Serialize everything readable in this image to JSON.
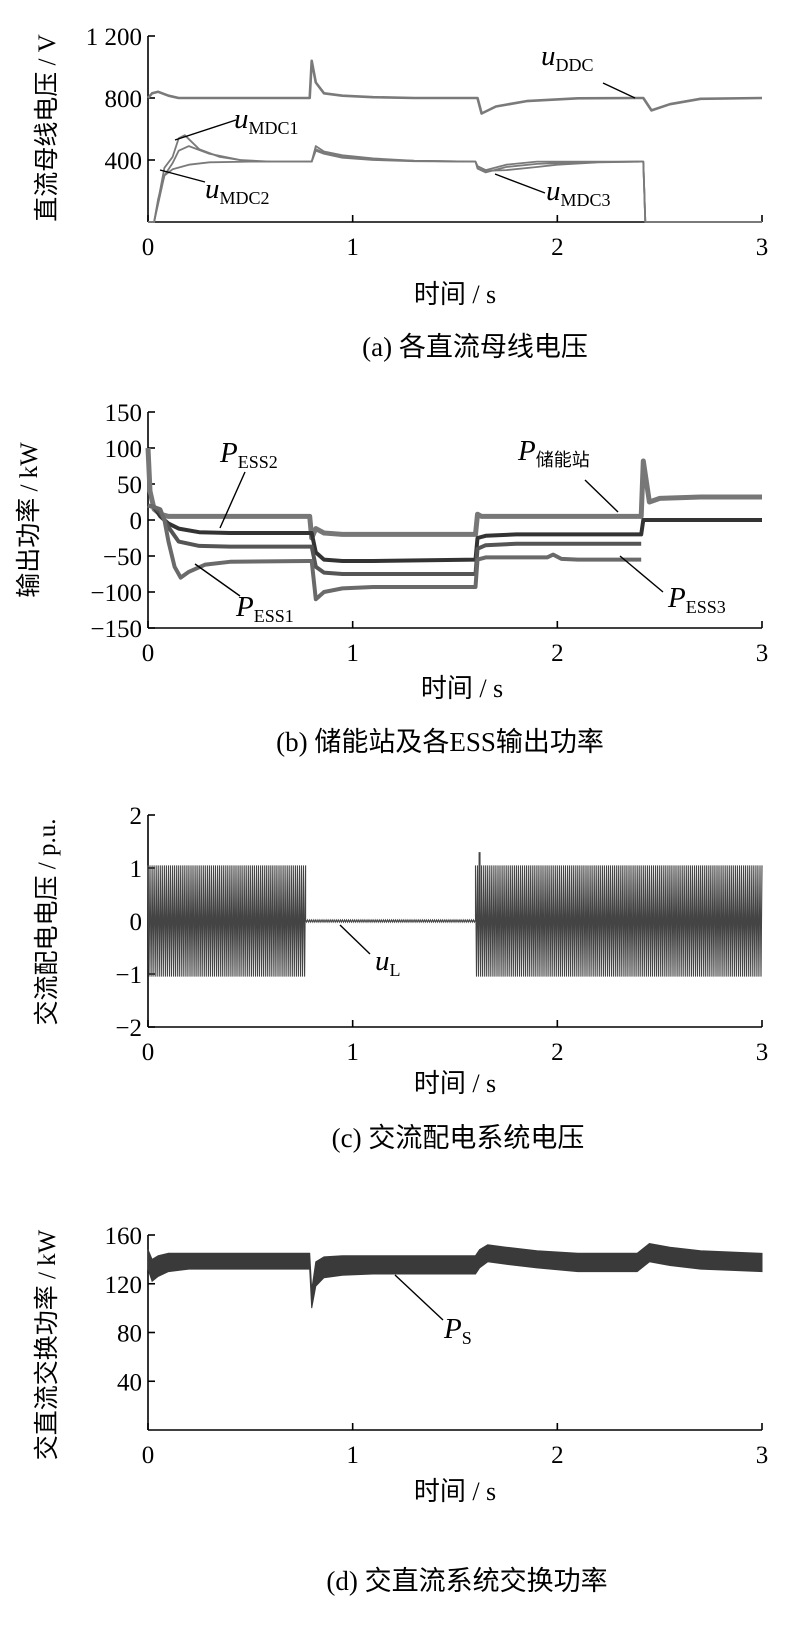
{
  "chart_data": [
    {
      "id": "a",
      "type": "line",
      "caption": "(a)  各直流母线电压",
      "xlabel": "时间 / s",
      "ylabel": "直流母线电压 / V",
      "xlim": [
        0,
        3
      ],
      "ylim": [
        0,
        1200
      ],
      "xticks": [
        {
          "v": 0,
          "label": "0"
        },
        {
          "v": 1,
          "label": "1"
        },
        {
          "v": 2,
          "label": "2"
        },
        {
          "v": 3,
          "label": "3"
        }
      ],
      "yticks": [
        {
          "v": 400,
          "label": "400"
        },
        {
          "v": 800,
          "label": "800"
        },
        {
          "v": 1200,
          "label": "1 200"
        }
      ],
      "series": [
        {
          "name": "uDDC",
          "color": "#7a7a7a",
          "width": 2.6,
          "x": [
            0,
            0.02,
            0.05,
            0.1,
            0.15,
            0.3,
            0.6,
            0.78,
            0.79,
            0.8,
            0.82,
            0.86,
            0.95,
            1.1,
            1.3,
            1.6,
            1.61,
            1.63,
            1.7,
            1.85,
            2.1,
            2.39,
            2.42,
            2.46,
            2.55,
            2.7,
            3.0
          ],
          "y": [
            800,
            830,
            840,
            815,
            800,
            800,
            800,
            800,
            800,
            1040,
            900,
            830,
            815,
            805,
            800,
            800,
            800,
            700,
            745,
            780,
            798,
            800,
            800,
            720,
            760,
            795,
            800
          ]
        },
        {
          "name": "uMDC1",
          "color": "#7a7a7a",
          "width": 1.8,
          "x": [
            0,
            0.03,
            0.08,
            0.12,
            0.15,
            0.18,
            0.25,
            0.35,
            0.5,
            0.78,
            0.8,
            0.82,
            0.86,
            0.95,
            1.1,
            1.3,
            1.6,
            1.61,
            1.65,
            1.75,
            1.9,
            2.1,
            2.41,
            2.42,
            2.43,
            3.0
          ],
          "y": [
            0,
            0,
            350,
            420,
            540,
            560,
            470,
            420,
            390,
            390,
            390,
            490,
            455,
            430,
            410,
            395,
            390,
            360,
            335,
            370,
            390,
            390,
            390,
            390,
            0,
            0
          ]
        },
        {
          "name": "uMDC2",
          "color": "#7a7a7a",
          "width": 1.8,
          "x": [
            0,
            0.03,
            0.08,
            0.12,
            0.15,
            0.2,
            0.3,
            0.45,
            0.6,
            0.78,
            0.8,
            0.82,
            0.86,
            0.95,
            1.1,
            1.3,
            1.6,
            1.61,
            1.65,
            1.75,
            1.9,
            2.1,
            2.41,
            2.42,
            2.43,
            3.0
          ],
          "y": [
            0,
            0,
            300,
            380,
            460,
            490,
            440,
            400,
            390,
            390,
            390,
            470,
            445,
            420,
            405,
            395,
            390,
            345,
            320,
            355,
            375,
            385,
            390,
            390,
            0,
            0
          ]
        },
        {
          "name": "uMDC3",
          "color": "#7a7a7a",
          "width": 1.8,
          "x": [
            0,
            0.03,
            0.05,
            0.08,
            0.12,
            0.2,
            0.3,
            0.5,
            0.78,
            0.8,
            0.82,
            0.86,
            0.95,
            1.1,
            1.3,
            1.6,
            1.61,
            1.65,
            1.75,
            1.9,
            2.0,
            2.2,
            2.41,
            2.42,
            2.43,
            3.0
          ],
          "y": [
            0,
            0,
            150,
            300,
            340,
            370,
            385,
            390,
            390,
            390,
            460,
            440,
            415,
            400,
            392,
            390,
            360,
            330,
            335,
            355,
            370,
            385,
            390,
            390,
            0,
            0
          ]
        }
      ],
      "annotations": [
        {
          "base": "u",
          "sub": "DDC"
        },
        {
          "base": "u",
          "sub": "MDC1"
        },
        {
          "base": "u",
          "sub": "MDC2"
        },
        {
          "base": "u",
          "sub": "MDC3"
        }
      ]
    },
    {
      "id": "b",
      "type": "line",
      "caption": "(b)  储能站及各ESS输出功率",
      "xlabel": "时间 / s",
      "ylabel": "输出功率 / kW",
      "xlim": [
        0,
        3
      ],
      "ylim": [
        -150,
        150
      ],
      "xticks": [
        {
          "v": 0,
          "label": "0"
        },
        {
          "v": 1,
          "label": "1"
        },
        {
          "v": 2,
          "label": "2"
        },
        {
          "v": 3,
          "label": "3"
        }
      ],
      "yticks": [
        {
          "v": -150,
          "label": "−150"
        },
        {
          "v": -100,
          "label": "−100"
        },
        {
          "v": -50,
          "label": "−50"
        },
        {
          "v": 0,
          "label": "0"
        },
        {
          "v": 50,
          "label": "50"
        },
        {
          "v": 100,
          "label": "100"
        },
        {
          "v": 150,
          "label": "150"
        }
      ],
      "series": [
        {
          "name": "P储能站",
          "color": "#777777",
          "width": 5,
          "x": [
            0,
            0.01,
            0.03,
            0.06,
            0.1,
            0.15,
            0.3,
            0.78,
            0.79,
            0.8,
            0.82,
            0.86,
            0.95,
            1.1,
            1.6,
            1.61,
            1.63,
            1.7,
            2.0,
            2.4,
            2.41,
            2.42,
            2.45,
            2.5,
            2.7,
            3.0
          ],
          "y": [
            100,
            40,
            15,
            8,
            5,
            5,
            5,
            5,
            5,
            -25,
            -12,
            -18,
            -20,
            -20,
            -20,
            8,
            5,
            5,
            5,
            5,
            5,
            82,
            25,
            30,
            32,
            32
          ]
        },
        {
          "name": "PESS2",
          "color": "#333333",
          "width": 4,
          "x": [
            0,
            0.03,
            0.06,
            0.1,
            0.15,
            0.25,
            0.4,
            0.78,
            0.8,
            0.82,
            0.86,
            0.95,
            1.1,
            1.6,
            1.61,
            1.65,
            1.8,
            2.4,
            2.41,
            2.42,
            3.0
          ],
          "y": [
            20,
            18,
            5,
            -5,
            -12,
            -17,
            -18,
            -18,
            -18,
            -45,
            -55,
            -57,
            -57,
            -55,
            -25,
            -22,
            -20,
            -20,
            -20,
            0,
            0
          ]
        },
        {
          "name": "PESS3",
          "color": "#555555",
          "width": 4,
          "x": [
            0,
            0.03,
            0.06,
            0.1,
            0.15,
            0.25,
            0.4,
            0.78,
            0.8,
            0.82,
            0.86,
            0.95,
            1.1,
            1.6,
            1.61,
            1.65,
            1.8,
            2.4,
            2.41
          ],
          "y": [
            20,
            18,
            10,
            -10,
            -30,
            -36,
            -37,
            -37,
            -37,
            -65,
            -73,
            -75,
            -75,
            -75,
            -40,
            -35,
            -33,
            -33,
            -33
          ]
        },
        {
          "name": "PESS1",
          "color": "#6a6a6a",
          "width": 4,
          "x": [
            0,
            0.03,
            0.06,
            0.08,
            0.1,
            0.13,
            0.16,
            0.2,
            0.28,
            0.4,
            0.78,
            0.8,
            0.82,
            0.86,
            0.95,
            1.1,
            1.6,
            1.61,
            1.65,
            1.8,
            1.95,
            1.98,
            2.02,
            2.1,
            2.4,
            2.41
          ],
          "y": [
            20,
            18,
            15,
            0,
            -30,
            -65,
            -80,
            -72,
            -62,
            -58,
            -57,
            -57,
            -110,
            -100,
            -95,
            -93,
            -93,
            -55,
            -52,
            -52,
            -52,
            -48,
            -54,
            -55,
            -55,
            -55
          ]
        }
      ],
      "annotations": [
        {
          "base": "P",
          "sub": "ESS2"
        },
        {
          "base": "P",
          "sub": "储能站"
        },
        {
          "base": "P",
          "sub": "ESS1"
        },
        {
          "base": "P",
          "sub": "ESS3"
        }
      ]
    },
    {
      "id": "c",
      "type": "line",
      "caption": "(c)  交流配电系统电压",
      "xlabel": "时间 / s",
      "ylabel": "交流配电电压 / p.u.",
      "xlim": [
        0,
        3
      ],
      "ylim": [
        -2,
        2
      ],
      "xticks": [
        {
          "v": 0,
          "label": "0"
        },
        {
          "v": 1,
          "label": "1"
        },
        {
          "v": 2,
          "label": "2"
        },
        {
          "v": 3,
          "label": "3"
        }
      ],
      "yticks": [
        {
          "v": -2,
          "label": "−2"
        },
        {
          "v": -1,
          "label": "−1"
        },
        {
          "v": 0,
          "label": "0"
        },
        {
          "v": 1,
          "label": "1"
        },
        {
          "v": 2,
          "label": "2"
        }
      ],
      "series": [
        {
          "name": "uL",
          "color": "#444444",
          "segments": [
            {
              "x0": 0,
              "x1": 0.77,
              "amp": 1.05
            },
            {
              "x0": 0.77,
              "x1": 1.6,
              "amp": 0.02
            },
            {
              "x0": 1.6,
              "x1": 3.0,
              "amp": 1.05
            }
          ],
          "spike": {
            "x": 1.62,
            "y": 1.3
          }
        }
      ],
      "annotations": [
        {
          "base": "u",
          "sub": "L"
        }
      ]
    },
    {
      "id": "d",
      "type": "area",
      "caption": "(d)  交直流系统交换功率",
      "xlabel": "时间 / s",
      "ylabel": "交直流交换功率 / kW",
      "xlim": [
        0,
        3
      ],
      "ylim": [
        0,
        160
      ],
      "xticks": [
        {
          "v": 0,
          "label": "0"
        },
        {
          "v": 1,
          "label": "1"
        },
        {
          "v": 2,
          "label": "2"
        },
        {
          "v": 3,
          "label": "3"
        }
      ],
      "yticks": [
        {
          "v": 40,
          "label": "40"
        },
        {
          "v": 80,
          "label": "80"
        },
        {
          "v": 120,
          "label": "120"
        },
        {
          "v": 160,
          "label": "160"
        }
      ],
      "series": [
        {
          "name": "PS",
          "color": "#3a3a3a",
          "x": [
            0.0,
            0.02,
            0.05,
            0.1,
            0.2,
            0.5,
            0.78,
            0.79,
            0.8,
            0.82,
            0.86,
            0.95,
            1.1,
            1.3,
            1.6,
            1.62,
            1.66,
            1.75,
            1.9,
            2.1,
            2.39,
            2.45,
            2.55,
            2.7,
            3.0
          ],
          "upper": [
            148,
            140,
            143,
            145,
            145,
            145,
            145,
            145,
            115,
            138,
            142,
            143,
            143,
            143,
            143,
            148,
            152,
            150,
            147,
            145,
            145,
            153,
            150,
            147,
            145
          ],
          "lower": [
            132,
            122,
            126,
            130,
            132,
            132,
            132,
            132,
            100,
            118,
            125,
            127,
            128,
            128,
            128,
            133,
            138,
            136,
            133,
            130,
            130,
            138,
            135,
            132,
            130
          ]
        }
      ],
      "annotations": [
        {
          "base": "P",
          "sub": "S"
        }
      ]
    }
  ]
}
